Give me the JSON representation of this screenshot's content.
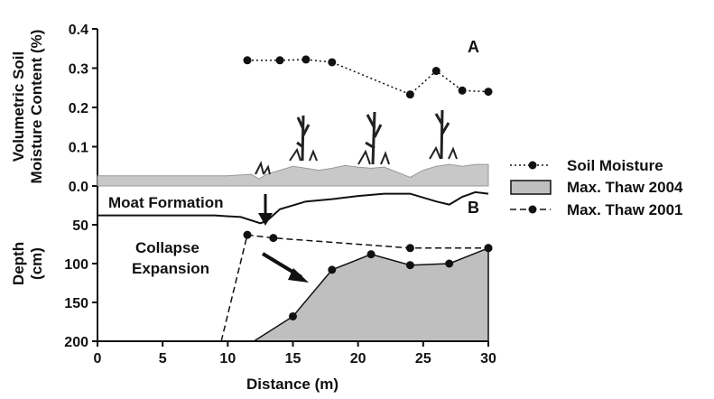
{
  "chart_data": [
    {
      "panel": "A",
      "type": "line",
      "ylabel_lines": [
        "Volumetric Soil",
        "Moisture Content (%)"
      ],
      "ylim": [
        0.0,
        0.4
      ],
      "yticks": [
        "0.0",
        "0.1",
        "0.2",
        "0.3",
        "0.4"
      ],
      "xlim": [
        0,
        30
      ],
      "grid": false,
      "series": [
        {
          "name": "Soil Moisture",
          "style": "dotted-markers",
          "x": [
            11.5,
            14,
            16,
            18,
            24,
            26,
            28,
            30
          ],
          "y": [
            0.32,
            0.32,
            0.322,
            0.315,
            0.233,
            0.293,
            0.243,
            0.24
          ]
        }
      ],
      "surface_profile": {
        "color": "#c8c8c8",
        "x": [
          0,
          10,
          11.8,
          12.4,
          13,
          14,
          15,
          16,
          17,
          18,
          19,
          20,
          21,
          22,
          23,
          24,
          25,
          26,
          27,
          28,
          29,
          30
        ],
        "y": [
          0.026,
          0.026,
          0.03,
          0.018,
          0.03,
          0.04,
          0.05,
          0.045,
          0.04,
          0.045,
          0.052,
          0.048,
          0.045,
          0.048,
          0.035,
          0.022,
          0.04,
          0.05,
          0.055,
          0.05,
          0.055,
          0.055
        ]
      }
    },
    {
      "panel": "B",
      "type": "area",
      "ylabel_lines": [
        "Depth",
        "(cm)"
      ],
      "xlabel": "Distance (m)",
      "ylim": [
        200,
        0
      ],
      "yticks": [
        "50",
        "100",
        "150",
        "200"
      ],
      "xticks": [
        "0",
        "5",
        "10",
        "15",
        "20",
        "25",
        "30"
      ],
      "xlim": [
        0,
        30
      ],
      "grid": false,
      "legend_position": "right",
      "series": [
        {
          "name": "Max. Thaw 2004",
          "style": "filled-area",
          "x": [
            12,
            15,
            18,
            21,
            24,
            27,
            30
          ],
          "y": [
            200,
            168,
            108,
            88,
            102,
            100,
            80
          ]
        },
        {
          "name": "Max. Thaw 2001",
          "style": "dashed-markers",
          "x": [
            9.5,
            11.5,
            13.5,
            24,
            30
          ],
          "y": [
            200,
            63,
            67,
            80,
            80
          ]
        }
      ],
      "surface_line": {
        "x": [
          0,
          9,
          11,
          12.5,
          13,
          14,
          16,
          18,
          20,
          22,
          24,
          26,
          27,
          28,
          29,
          30
        ],
        "y": [
          38,
          38,
          40,
          48,
          45,
          30,
          20,
          17,
          13,
          10,
          10,
          20,
          24,
          14,
          8,
          10
        ]
      }
    }
  ],
  "annotations": {
    "panel_a_label": "A",
    "panel_b_label": "B",
    "moat_formation": "Moat Formation",
    "collapse_expansion_line1": "Collapse",
    "collapse_expansion_line2": "Expansion"
  },
  "colors": {
    "thaw_2004_fill": "#bfbfbf",
    "lines": "#111111"
  }
}
